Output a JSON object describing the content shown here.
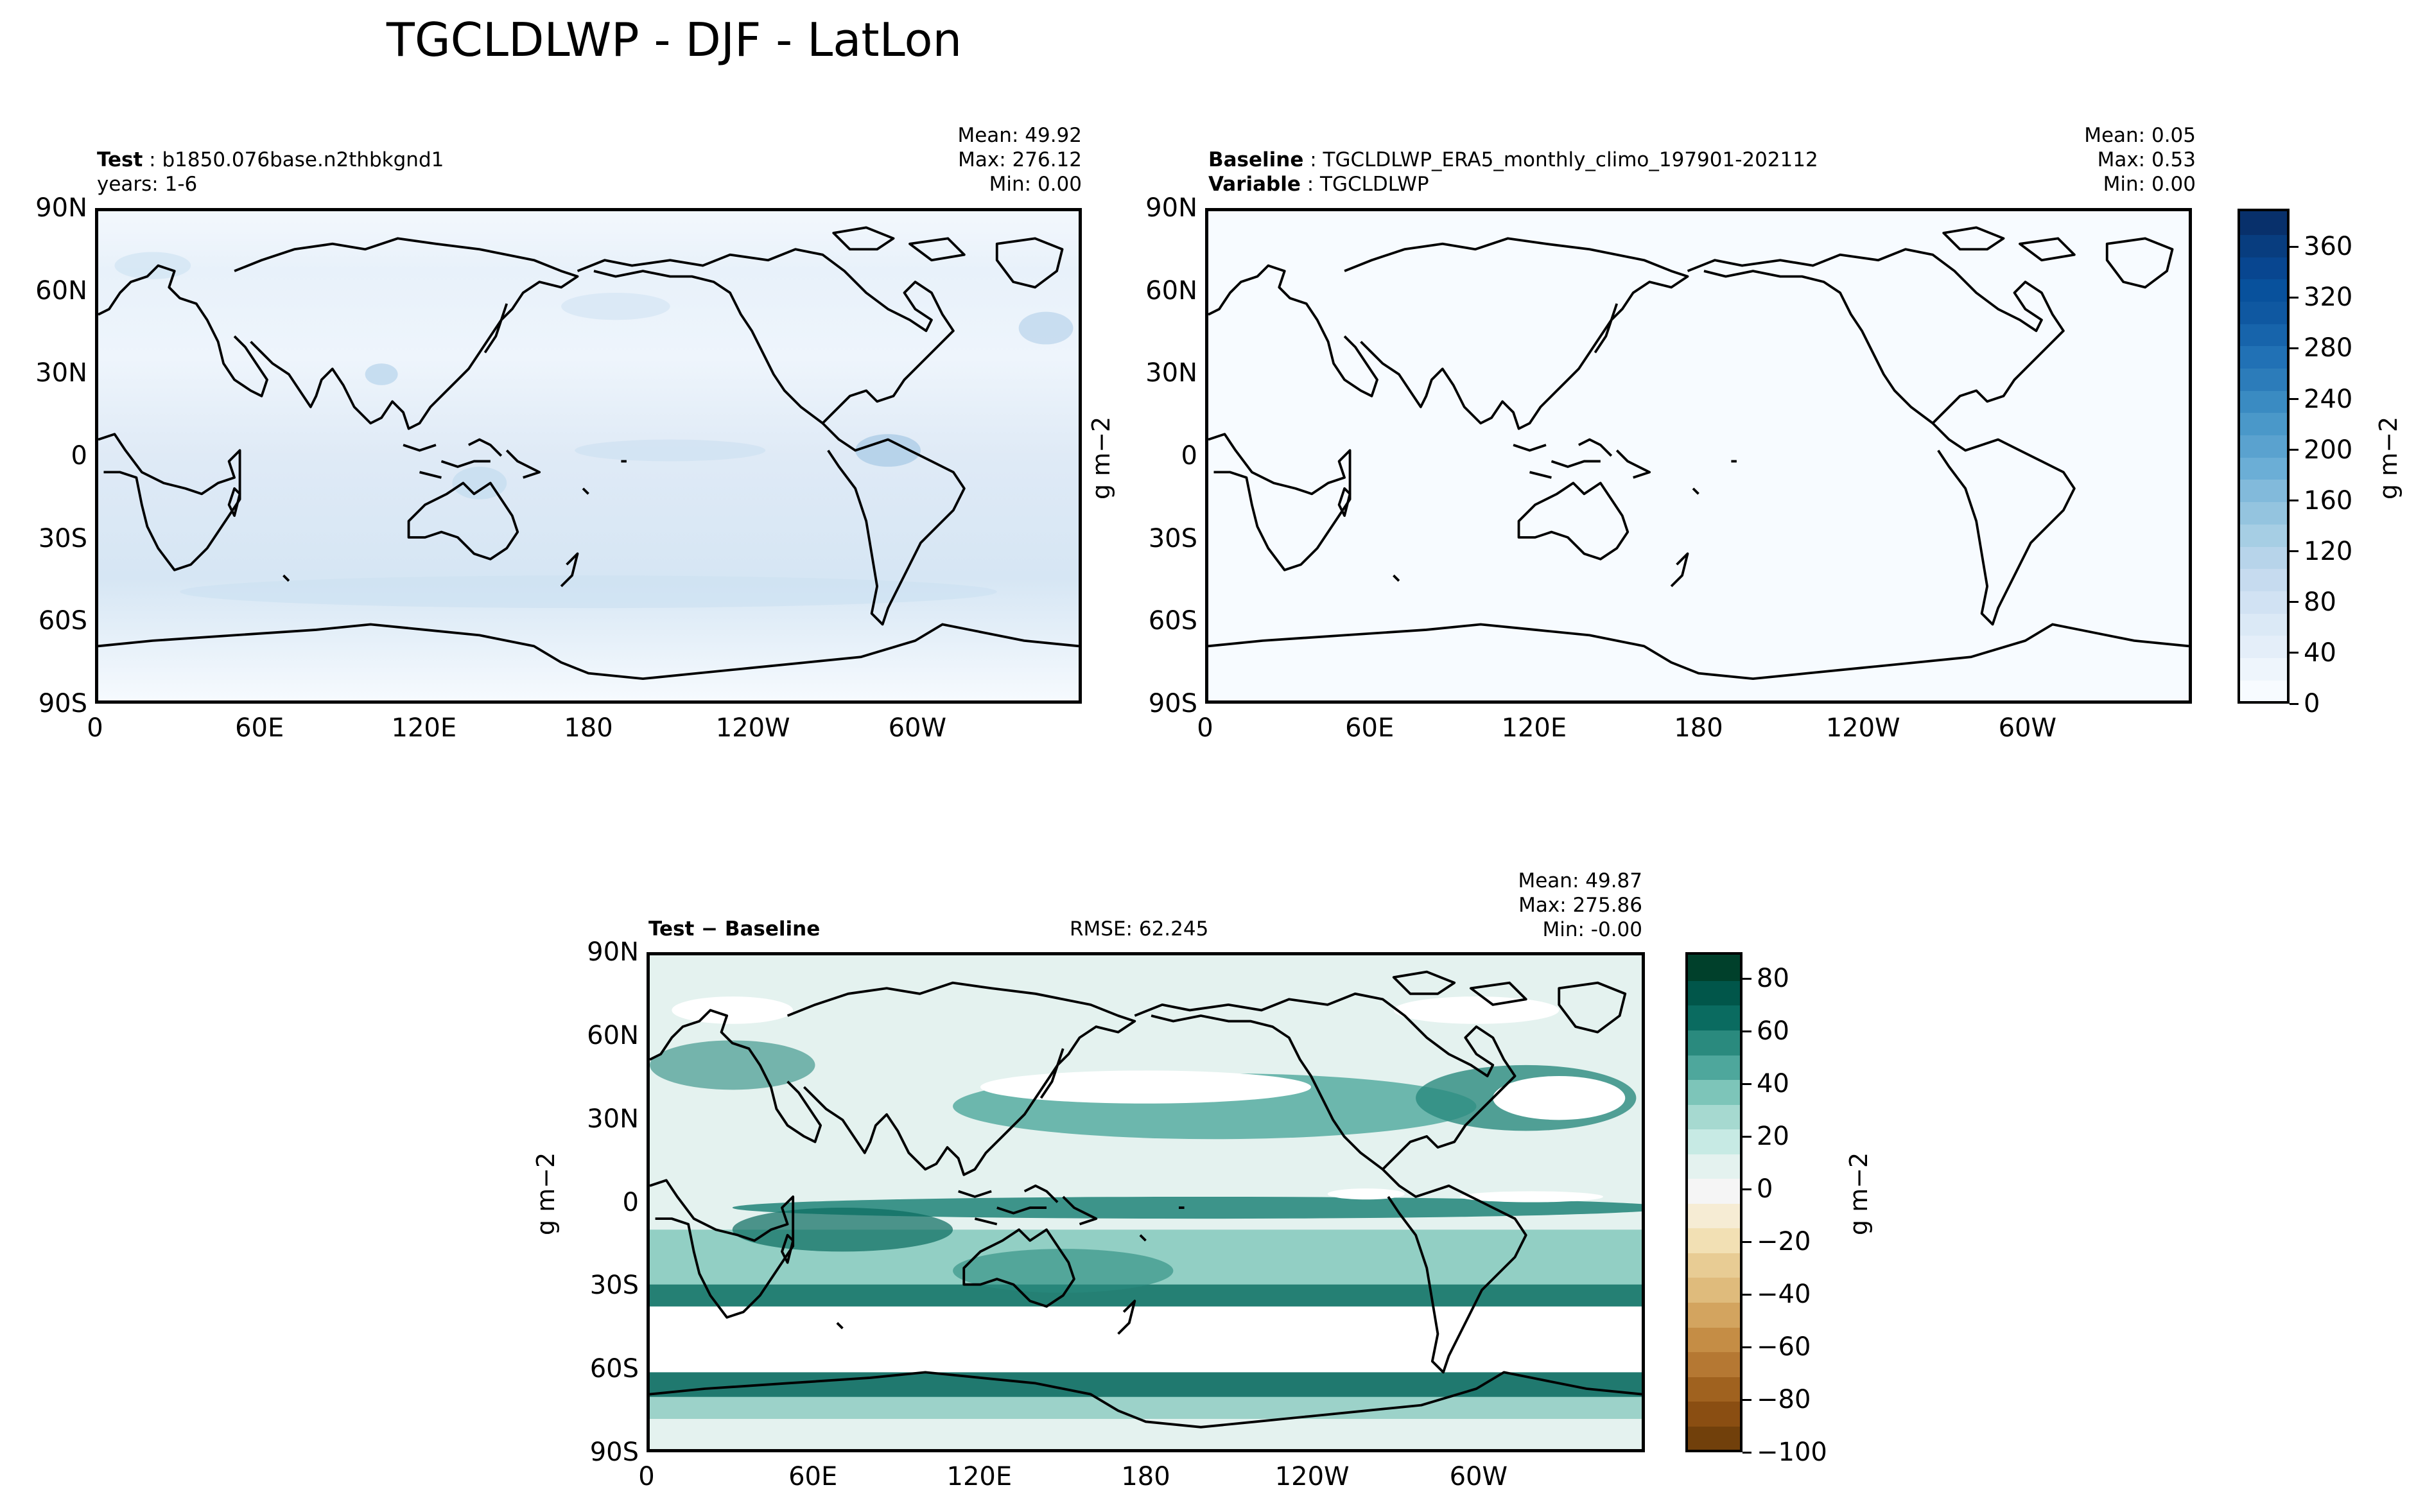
{
  "figure": {
    "title": "TGCLDLWP - DJF - LatLon"
  },
  "panels": {
    "test": {
      "name_label": "Test",
      "name_value": "b1850.076base.n2thbkgnd1",
      "years": "years: 1-6",
      "stats": [
        "Mean: 49.92",
        "Max: 276.12",
        "Min:  0.00"
      ]
    },
    "baseline": {
      "name_label": "Baseline",
      "name_value": "TGCLDLWP_ERA5_monthly_climo_197901-202112",
      "variable_label": "Variable",
      "variable_value": "TGCLDLWP",
      "stats": [
        "Mean:  0.05",
        "Max:  0.53",
        "Min:  0.00"
      ]
    },
    "diff": {
      "title": "Test − Baseline",
      "rmse": "RMSE: 62.245",
      "stats": [
        "Mean: 49.87",
        "Max: 275.86",
        "Min: -0.00"
      ]
    }
  },
  "axes": {
    "lat_ticks": [
      "90N",
      "60N",
      "30N",
      "0",
      "30S",
      "60S",
      "90S"
    ],
    "lon_ticks": [
      "0",
      "60E",
      "120E",
      "180",
      "120W",
      "60W"
    ]
  },
  "units": "g m−2",
  "colorbars": {
    "top": {
      "ticks": [
        "360",
        "320",
        "280",
        "240",
        "200",
        "160",
        "120",
        "80",
        "40",
        "0"
      ],
      "range": [
        0,
        390
      ],
      "colormap": "Blues",
      "colors": [
        "#f7fbff",
        "#eef5fc",
        "#e4eef9",
        "#dbe9f6",
        "#d1e2f3",
        "#c6dbef",
        "#b7d4ea",
        "#a6cee4",
        "#94c4df",
        "#82badb",
        "#6baed6",
        "#5aa2cf",
        "#4a98c9",
        "#3a8bc2",
        "#2c7cba",
        "#2171b5",
        "#1764ab",
        "#0f58a1",
        "#08519c",
        "#084690",
        "#083d7f",
        "#08306b"
      ]
    },
    "diff": {
      "ticks": [
        "80",
        "60",
        "40",
        "20",
        "0",
        "−20",
        "−40",
        "−60",
        "−80",
        "−100"
      ],
      "range": [
        -100,
        90
      ],
      "colormap": "BrBG",
      "colors": [
        "#00402b",
        "#01564a",
        "#0a6b60",
        "#2a8a7e",
        "#4ea79c",
        "#7dc5b9",
        "#a6d9d0",
        "#c7eae4",
        "#e4f2ef",
        "#f5f5f5",
        "#f6ecd4",
        "#f2e0b4",
        "#e8cc94",
        "#dfbb7c",
        "#d3a45f",
        "#c58d45",
        "#b57833",
        "#a0621f",
        "#8a4e12",
        "#71400b"
      ]
    }
  }
}
